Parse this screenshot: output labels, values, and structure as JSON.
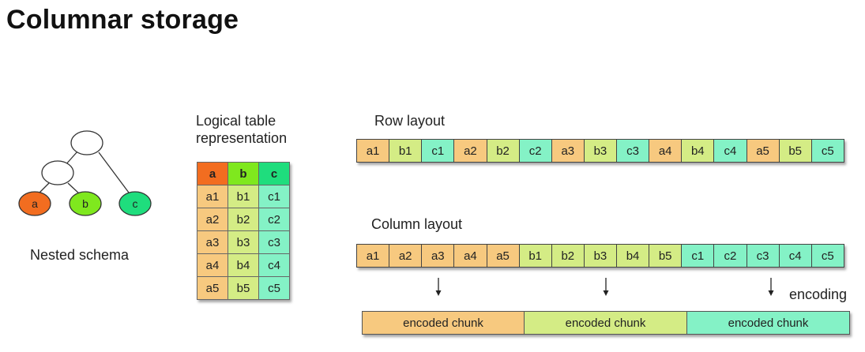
{
  "title": "Columnar storage",
  "schema": {
    "caption": "Nested schema",
    "leaves": [
      "a",
      "b",
      "c"
    ],
    "colors": {
      "a": "#f26d20",
      "b": "#7fe81e",
      "c": "#1fdd7d"
    }
  },
  "logical_table": {
    "caption_line1": "Logical table",
    "caption_line2": "representation",
    "headers": [
      "a",
      "b",
      "c"
    ],
    "rows": [
      [
        "a1",
        "b1",
        "c1"
      ],
      [
        "a2",
        "b2",
        "c2"
      ],
      [
        "a3",
        "b3",
        "c3"
      ],
      [
        "a4",
        "b4",
        "c4"
      ],
      [
        "a5",
        "b5",
        "c5"
      ]
    ]
  },
  "row_layout": {
    "label": "Row layout",
    "cells": [
      "a1",
      "b1",
      "c1",
      "a2",
      "b2",
      "c2",
      "a3",
      "b3",
      "c3",
      "a4",
      "b4",
      "c4",
      "a5",
      "b5",
      "c5"
    ]
  },
  "column_layout": {
    "label": "Column layout",
    "cells": [
      "a1",
      "a2",
      "a3",
      "a4",
      "a5",
      "b1",
      "b2",
      "b3",
      "b4",
      "b5",
      "c1",
      "c2",
      "c3",
      "c4",
      "c5"
    ]
  },
  "encoding": {
    "label": "encoding",
    "chunks": [
      "encoded chunk",
      "encoded chunk",
      "encoded chunk"
    ]
  },
  "cell_colors": {
    "a": "#f7c97f",
    "b": "#d4ec85",
    "c": "#84f2c6"
  }
}
